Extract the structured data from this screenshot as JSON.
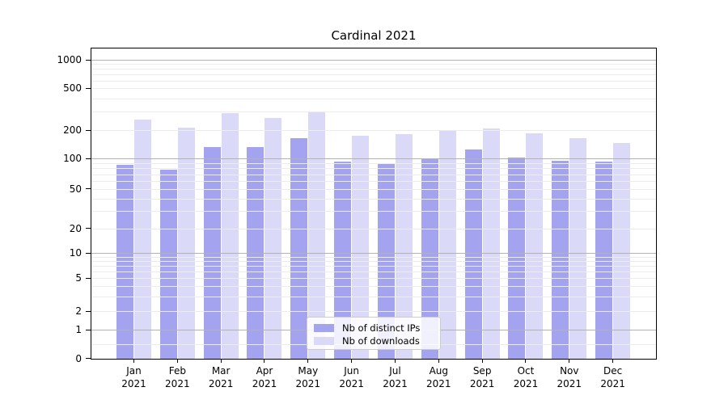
{
  "chart_data": {
    "type": "bar",
    "title": "Cardinal 2021",
    "categories": [
      "Jan",
      "Feb",
      "Mar",
      "Apr",
      "May",
      "Jun",
      "Jul",
      "Aug",
      "Sep",
      "Oct",
      "Nov",
      "Dec"
    ],
    "category_year": "2021",
    "series": [
      {
        "name": "Nb of distinct IPs",
        "color": "#a3a3f0",
        "values": [
          87,
          78,
          132,
          133,
          166,
          93,
          89,
          100,
          125,
          103,
          95,
          93
        ]
      },
      {
        "name": "Nb of downloads",
        "color": "#dadaf8",
        "values": [
          252,
          210,
          290,
          261,
          293,
          174,
          181,
          200,
          206,
          185,
          165,
          147
        ]
      }
    ],
    "yscale": "log-like (log decades with linear 0-1 segment)",
    "ylim": [
      0,
      1000
    ],
    "ytick_labels": [
      "1000",
      "500",
      "200",
      "100",
      "50",
      "20",
      "10",
      "5",
      "2",
      "1",
      "0"
    ],
    "grid": "on",
    "grid_major_values": [
      1,
      10,
      100,
      1000
    ],
    "grid_minor_values": [
      0.5,
      2,
      3,
      4,
      5,
      6,
      7,
      8,
      9,
      20,
      30,
      40,
      50,
      60,
      70,
      80,
      90,
      200,
      300,
      400,
      500,
      600,
      700,
      800,
      900
    ],
    "grid_major_color": "#b2b2b2",
    "grid_minor_color": "#ececec",
    "legend_position": "lower center",
    "background_color": "#ffffff",
    "spine_color": "#000000"
  }
}
